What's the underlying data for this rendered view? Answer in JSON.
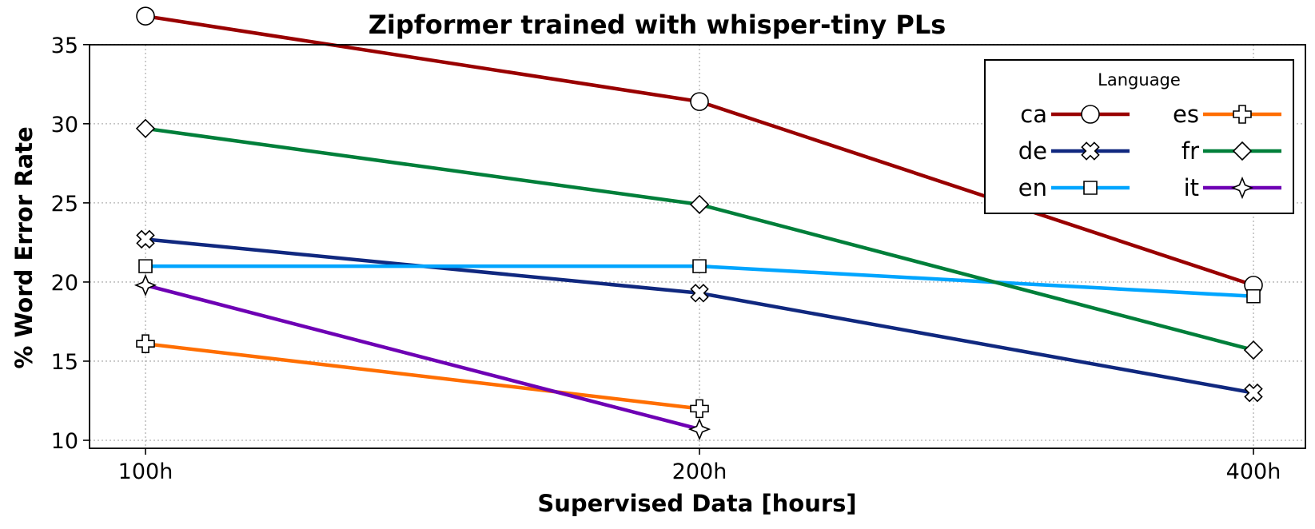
{
  "chart_data": {
    "type": "line",
    "title": "Zipformer trained with whisper-tiny PLs",
    "xlabel": "Supervised Data [hours]",
    "ylabel": "% Word Error Rate",
    "categories": [
      "100h",
      "200h",
      "400h"
    ],
    "y_ticks": [
      "10",
      "15",
      "20",
      "25",
      "30",
      "35"
    ],
    "ylim": [
      9.4,
      38.2
    ],
    "grid": true,
    "legend": {
      "title": "Language",
      "placement": "top-right",
      "columns": 2
    },
    "series": [
      {
        "name": "ca",
        "color": "#990000",
        "marker": "circle",
        "values": [
          36.8,
          31.4,
          19.8
        ]
      },
      {
        "name": "de",
        "color": "#10287f",
        "marker": "x",
        "values": [
          22.7,
          19.3,
          13.0
        ]
      },
      {
        "name": "en",
        "color": "#00a5ff",
        "marker": "square",
        "values": [
          21.0,
          21.0,
          19.1
        ]
      },
      {
        "name": "es",
        "color": "#ff6e00",
        "marker": "plus",
        "values": [
          16.1,
          12.0,
          null
        ]
      },
      {
        "name": "fr",
        "color": "#007f3a",
        "marker": "diamond",
        "values": [
          29.7,
          24.9,
          15.7
        ]
      },
      {
        "name": "it",
        "color": "#6e00b4",
        "marker": "star4",
        "values": [
          19.8,
          10.7,
          null
        ]
      }
    ]
  }
}
